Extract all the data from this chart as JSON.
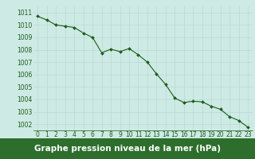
{
  "x": [
    0,
    1,
    2,
    3,
    4,
    5,
    6,
    7,
    8,
    9,
    10,
    11,
    12,
    13,
    14,
    15,
    16,
    17,
    18,
    19,
    20,
    21,
    22,
    23
  ],
  "y": [
    1010.7,
    1010.4,
    1010.0,
    1009.9,
    1009.8,
    1009.35,
    1009.0,
    1007.75,
    1008.05,
    1007.85,
    1008.1,
    1007.6,
    1007.0,
    1006.05,
    1005.2,
    1004.1,
    1003.75,
    1003.85,
    1003.8,
    1003.45,
    1003.2,
    1002.6,
    1002.3,
    1001.75
  ],
  "line_color": "#1a5c1a",
  "marker_color": "#1a5c1a",
  "bg_color": "#ceeae4",
  "grid_color": "#b0d8d0",
  "xlabel": "Graphe pression niveau de la mer (hPa)",
  "xlabel_bg": "#2d6e2d",
  "xlabel_color": "#ffffff",
  "ylabel_ticks": [
    1002,
    1003,
    1004,
    1005,
    1006,
    1007,
    1008,
    1009,
    1010,
    1011
  ],
  "ylim": [
    1001.5,
    1011.5
  ],
  "xlim": [
    -0.5,
    23.5
  ],
  "tick_color": "#1a5c1a",
  "tick_fontsize": 5.5,
  "xlabel_fontsize": 7.5
}
